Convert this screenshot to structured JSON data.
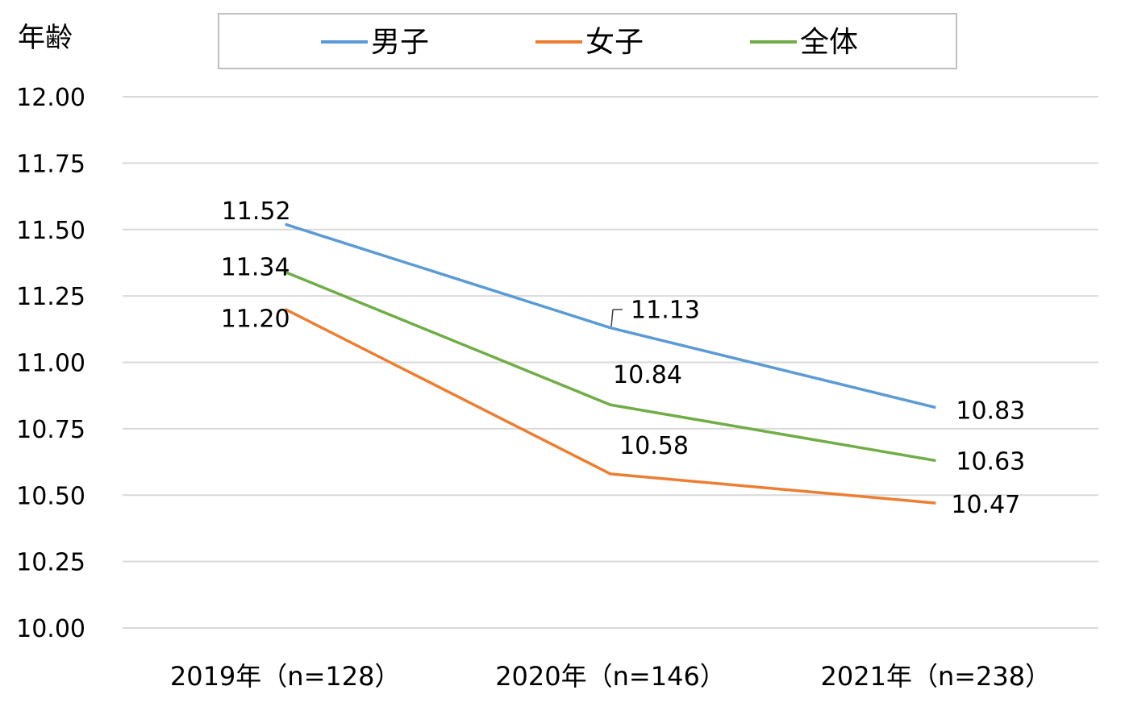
{
  "chart_data": {
    "type": "line",
    "title": "",
    "xlabel": "",
    "ylabel": "年齢",
    "ylim": [
      10.0,
      12.0
    ],
    "y_ticks": [
      "10.00",
      "10.25",
      "10.50",
      "10.75",
      "11.00",
      "11.25",
      "11.50",
      "11.75",
      "12.00"
    ],
    "categories": [
      "2019年（n=128）",
      "2020年（n=146）",
      "2021年（n=238）"
    ],
    "grid": true,
    "legend_position": "top-center",
    "series": [
      {
        "name": "男子",
        "color": "#5B9BD5",
        "values": [
          11.52,
          11.13,
          10.83
        ],
        "labels": [
          "11.52",
          "11.13",
          "10.83"
        ]
      },
      {
        "name": "女子",
        "color": "#ED7D31",
        "values": [
          11.2,
          10.58,
          10.47
        ],
        "labels": [
          "11.20",
          "10.58",
          "10.47"
        ]
      },
      {
        "name": "全体",
        "color": "#70AD47",
        "values": [
          11.34,
          10.84,
          10.63
        ],
        "labels": [
          "11.34",
          "10.84",
          "10.63"
        ]
      }
    ]
  }
}
